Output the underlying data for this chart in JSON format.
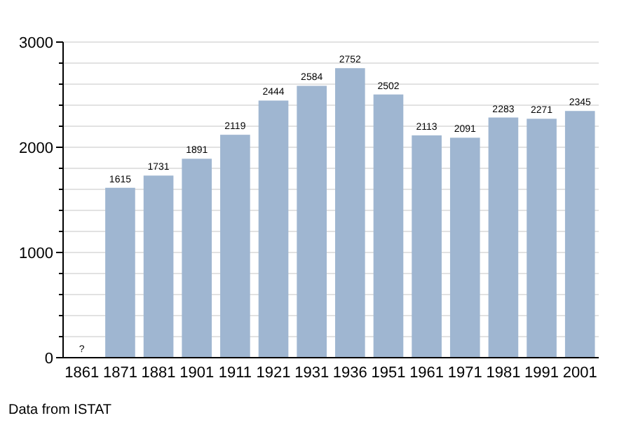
{
  "chart_data": {
    "type": "bar",
    "categories": [
      "1861",
      "1871",
      "1881",
      "1901",
      "1911",
      "1921",
      "1931",
      "1936",
      "1951",
      "1961",
      "1971",
      "1981",
      "1991",
      "2001"
    ],
    "values": [
      null,
      1615,
      1731,
      1891,
      2119,
      2444,
      2584,
      2752,
      2502,
      2113,
      2091,
      2283,
      2271,
      2345
    ],
    "value_labels": [
      "?",
      "1615",
      "1731",
      "1891",
      "2119",
      "2444",
      "2584",
      "2752",
      "2502",
      "2113",
      "2091",
      "2283",
      "2271",
      "2345"
    ],
    "color": "#9fb6d1",
    "ylim": [
      0,
      3000
    ],
    "yticks": [
      0,
      {
        "value": 200,
        "label": null
      },
      {
        "value": 400,
        "label": null
      },
      {
        "value": 600,
        "label": null
      },
      {
        "value": 800,
        "label": null
      },
      1000,
      {
        "value": 1200,
        "label": null
      },
      {
        "value": 1400,
        "label": null
      },
      {
        "value": 1600,
        "label": null
      },
      {
        "value": 1800,
        "label": null
      },
      2000,
      {
        "value": 2200,
        "label": null
      },
      {
        "value": 2400,
        "label": null
      },
      {
        "value": 2600,
        "label": null
      },
      {
        "value": 2800,
        "label": null
      },
      3000
    ],
    "grid": "y",
    "annotations": [
      "Data from ISTAT"
    ]
  }
}
